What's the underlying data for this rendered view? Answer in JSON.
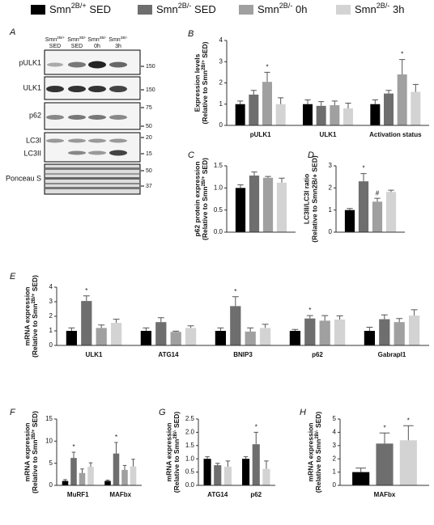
{
  "legend": [
    {
      "pre": "Smn",
      "sup": "2B/+",
      "post": " SED",
      "color": "#000000"
    },
    {
      "pre": "Smn",
      "sup": "2B/-",
      "post": " SED",
      "color": "#6e6e6e"
    },
    {
      "pre": "Smn",
      "sup": "2B/-",
      "post": " 0h",
      "color": "#a0a0a0"
    },
    {
      "pre": "Smn",
      "sup": "2B/-",
      "post": " 3h",
      "color": "#d3d3d3"
    }
  ],
  "blot": {
    "panel": "A",
    "columns": [
      {
        "pre": "Smn",
        "sup": "2B/+",
        "line2": "SED"
      },
      {
        "pre": "Smn",
        "sup": "2B/-",
        "line2": "SED"
      },
      {
        "pre": "Smn",
        "sup": "2B/-",
        "line2": "0h"
      },
      {
        "pre": "Smn",
        "sup": "2B/-",
        "line2": "3h"
      }
    ],
    "rows": [
      "pULK1",
      "ULK1",
      "p62",
      "LC3I",
      "LC3II",
      "Ponceau S"
    ],
    "markers": [
      "150",
      "150",
      "75",
      "50",
      "20",
      "15",
      "50",
      "37"
    ]
  },
  "chart_data": [
    {
      "type": "bar",
      "panel": "B",
      "ylabel": [
        "Expression levels",
        {
          "pre": "(Relative to Smn",
          "sup": "2B/+",
          "post": " SED)"
        }
      ],
      "categories": [
        "pULK1",
        "ULK1",
        "Activation   status"
      ],
      "ylim": [
        0,
        4
      ],
      "yticks": [
        0,
        1,
        2,
        3,
        4
      ],
      "series": [
        {
          "color": "#000000",
          "values": [
            1.0,
            1.0,
            1.0
          ],
          "errors": [
            0.15,
            0.2,
            0.2
          ],
          "labels": [
            null,
            null,
            null
          ]
        },
        {
          "color": "#6e6e6e",
          "values": [
            1.45,
            0.92,
            1.5
          ],
          "errors": [
            0.2,
            0.2,
            0.15
          ],
          "labels": [
            null,
            null,
            null
          ]
        },
        {
          "color": "#a0a0a0",
          "values": [
            2.05,
            0.95,
            2.4
          ],
          "errors": [
            0.45,
            0.2,
            0.7
          ],
          "labels": [
            "*",
            null,
            "*"
          ]
        },
        {
          "color": "#d3d3d3",
          "values": [
            1.0,
            0.8,
            1.58
          ],
          "errors": [
            0.3,
            0.25,
            0.35
          ],
          "labels": [
            null,
            null,
            null
          ]
        }
      ]
    },
    {
      "type": "bar",
      "panel": "C",
      "ylabel": [
        "p62 protein expression",
        {
          "pre": "(Relative to Smn",
          "sup": "2B/+",
          "post": " SED)"
        }
      ],
      "categories": [
        null
      ],
      "ylim": [
        0,
        1.5
      ],
      "yticks": [
        {
          "value": 0,
          "label": "0.0"
        },
        {
          "value": 0.5,
          "label": "0.5"
        },
        {
          "value": 1,
          "label": "1.0"
        },
        {
          "value": 1.5,
          "label": "1.5"
        }
      ],
      "series": [
        {
          "color": "#000000",
          "values": [
            1.0
          ],
          "errors": [
            0.07
          ],
          "labels": [
            null
          ]
        },
        {
          "color": "#6e6e6e",
          "values": [
            1.28
          ],
          "errors": [
            0.08
          ],
          "labels": [
            null
          ]
        },
        {
          "color": "#a0a0a0",
          "values": [
            1.23
          ],
          "errors": [
            0.03
          ],
          "labels": [
            null
          ]
        },
        {
          "color": "#d3d3d3",
          "values": [
            1.12
          ],
          "errors": [
            0.1
          ],
          "labels": [
            null
          ]
        }
      ]
    },
    {
      "type": "bar",
      "panel": "D",
      "ylabel": [
        "LC3II/LC3I ratio",
        "(Relative to Smn2B/+ SED)"
      ],
      "categories": [
        null
      ],
      "ylim": [
        0,
        3
      ],
      "yticks": [
        0,
        1,
        2,
        3
      ],
      "series": [
        {
          "color": "#000000",
          "values": [
            1.0
          ],
          "errors": [
            0.07
          ],
          "labels": [
            null
          ]
        },
        {
          "color": "#6e6e6e",
          "values": [
            2.3
          ],
          "errors": [
            0.35
          ],
          "labels": [
            "*"
          ]
        },
        {
          "color": "#a0a0a0",
          "values": [
            1.38
          ],
          "errors": [
            0.15
          ],
          "labels": [
            "#"
          ]
        },
        {
          "color": "#d3d3d3",
          "values": [
            1.82
          ],
          "errors": [
            0.08
          ],
          "labels": [
            null
          ]
        }
      ]
    },
    {
      "type": "bar",
      "panel": "E",
      "ylabel": [
        "mRNA expression",
        {
          "pre": "(Relative to Smn",
          "sup": "2B/+",
          "post": " SED)"
        }
      ],
      "categories": [
        "ULK1",
        "ATG14",
        "BNIP3",
        "p62",
        "Gabrapl1"
      ],
      "ylim": [
        0,
        4
      ],
      "yticks": [
        0,
        1,
        2,
        3,
        4
      ],
      "series": [
        {
          "color": "#000000",
          "values": [
            1.0,
            1.0,
            1.0,
            1.0,
            1.0
          ],
          "errors": [
            0.2,
            0.2,
            0.2,
            0.1,
            0.25
          ],
          "labels": [
            null,
            null,
            null,
            null,
            null
          ]
        },
        {
          "color": "#6e6e6e",
          "values": [
            3.05,
            1.6,
            2.7,
            1.85,
            1.8
          ],
          "errors": [
            0.35,
            0.3,
            0.65,
            0.2,
            0.3
          ],
          "labels": [
            "*",
            null,
            "*",
            "*",
            null
          ]
        },
        {
          "color": "#a0a0a0",
          "values": [
            1.2,
            0.93,
            0.95,
            1.7,
            1.6
          ],
          "errors": [
            0.2,
            0.05,
            0.25,
            0.35,
            0.25
          ],
          "labels": [
            null,
            null,
            null,
            null,
            null
          ]
        },
        {
          "color": "#d3d3d3",
          "values": [
            1.55,
            1.2,
            1.2,
            1.78,
            2.05
          ],
          "errors": [
            0.25,
            0.15,
            0.25,
            0.25,
            0.4
          ],
          "labels": [
            null,
            null,
            null,
            null,
            null
          ]
        }
      ]
    },
    {
      "type": "bar",
      "panel": "F",
      "ylabel": [
        "mRNA expression",
        {
          "pre": "(Relative to Smn",
          "sup": "2B/+",
          "post": " SED)"
        }
      ],
      "categories": [
        "MuRF1",
        "MAFbx"
      ],
      "ylim": [
        0,
        15
      ],
      "yticks": [
        0,
        5,
        10,
        15
      ],
      "series": [
        {
          "color": "#000000",
          "values": [
            1.0,
            1.0
          ],
          "errors": [
            0.3,
            0.2
          ],
          "labels": [
            null,
            null
          ]
        },
        {
          "color": "#6e6e6e",
          "values": [
            6.2,
            7.2
          ],
          "errors": [
            1.3,
            2.5
          ],
          "labels": [
            "*",
            "*"
          ]
        },
        {
          "color": "#a0a0a0",
          "values": [
            2.8,
            3.5
          ],
          "errors": [
            0.9,
            1.0
          ],
          "labels": [
            null,
            null
          ]
        },
        {
          "color": "#d3d3d3",
          "values": [
            4.2,
            4.3
          ],
          "errors": [
            0.9,
            1.6
          ],
          "labels": [
            null,
            null
          ]
        }
      ]
    },
    {
      "type": "bar",
      "panel": "G",
      "ylabel": [
        "mRNA expression",
        {
          "pre": "(Relative to Smn",
          "sup": "2B/-",
          "post": " SED)"
        }
      ],
      "categories": [
        "ATG14",
        "p62"
      ],
      "ylim": [
        0,
        2.5
      ],
      "yticks": [
        {
          "value": 0,
          "label": "0.0"
        },
        {
          "value": 0.5,
          "label": "0.5"
        },
        {
          "value": 1,
          "label": "1.0"
        },
        {
          "value": 1.5,
          "label": "1.5"
        },
        {
          "value": 2,
          "label": "2.0"
        },
        {
          "value": 2.5,
          "label": "2.5"
        }
      ],
      "series": [
        {
          "color": "#000000",
          "values": [
            1.0,
            1.0
          ],
          "errors": [
            0.08,
            0.08
          ],
          "labels": [
            null,
            null
          ]
        },
        {
          "color": "#6e6e6e",
          "values": [
            0.76,
            1.55
          ],
          "errors": [
            0.07,
            0.45
          ],
          "labels": [
            null,
            "*"
          ]
        },
        {
          "color": "#d3d3d3",
          "values": [
            0.7,
            0.62
          ],
          "errors": [
            0.22,
            0.3
          ],
          "labels": [
            null,
            null
          ]
        }
      ]
    },
    {
      "type": "bar",
      "panel": "H",
      "ylabel": [
        "mRNA expression",
        {
          "pre": "(Relative to Smn",
          "sup": "2B/-",
          "post": " SED)"
        }
      ],
      "categories": [
        "MAFbx"
      ],
      "ylim": [
        0,
        5
      ],
      "yticks": [
        0,
        1,
        2,
        3,
        4,
        5
      ],
      "series": [
        {
          "color": "#000000",
          "values": [
            1.0
          ],
          "errors": [
            0.3
          ],
          "labels": [
            null
          ]
        },
        {
          "color": "#6e6e6e",
          "values": [
            3.15
          ],
          "errors": [
            0.8
          ],
          "labels": [
            "*"
          ]
        },
        {
          "color": "#d3d3d3",
          "values": [
            3.4
          ],
          "errors": [
            1.1
          ],
          "labels": [
            "*"
          ]
        }
      ]
    }
  ]
}
